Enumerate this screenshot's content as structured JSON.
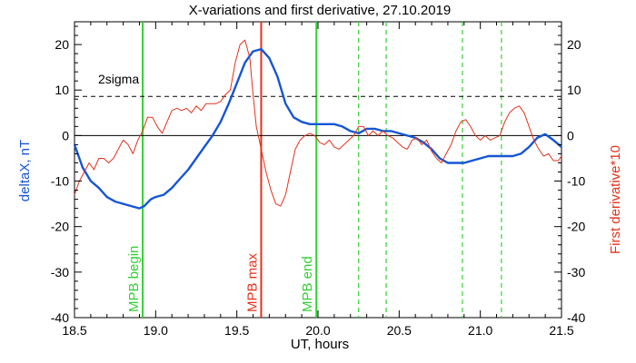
{
  "chart_data": {
    "type": "line",
    "title": "X-variations and first derivative, 27.10.2019",
    "xlabel": "UT, hours",
    "ylabel_left": "deltaX, nT",
    "ylabel_right": "First derivative*10",
    "xlim": [
      18.5,
      21.5
    ],
    "ylim_left": [
      -40,
      25
    ],
    "ylim_right": [
      -40,
      25
    ],
    "x_ticks": [
      "18.5",
      "19.0",
      "19.5",
      "20.0",
      "20.5",
      "21.0",
      "21.5"
    ],
    "x_tick_values": [
      18.5,
      19.0,
      19.5,
      20.0,
      20.5,
      21.0,
      21.5
    ],
    "y_ticks": [
      "20",
      "10",
      "0",
      "-10",
      "-20",
      "-30",
      "-40"
    ],
    "y_tick_values": [
      20,
      10,
      0,
      -10,
      -20,
      -30,
      -40
    ],
    "sigma_label": "2sigma",
    "sigma_value": 8.6,
    "colors": {
      "deltaX": "#1555d6",
      "derivative": "#e2321c",
      "mpb_begin": "#33d233",
      "mpb_max": "#e2321c",
      "mpb_end": "#33d233",
      "dashed_markers": "#33d233"
    },
    "vertical_markers": [
      {
        "x": 18.92,
        "label": "MPB begin",
        "color": "#33d233"
      },
      {
        "x": 19.65,
        "label": "MPB max",
        "color": "#e2321c"
      },
      {
        "x": 19.99,
        "label": "MPB end",
        "color": "#33d233"
      }
    ],
    "dashed_markers": [
      20.25,
      20.42,
      20.89,
      21.13
    ],
    "series": [
      {
        "name": "deltaX, nT",
        "axis": "left",
        "x": [
          18.5,
          18.55,
          18.6,
          18.65,
          18.7,
          18.75,
          18.8,
          18.85,
          18.9,
          18.93,
          18.97,
          19.0,
          19.05,
          19.1,
          19.15,
          19.2,
          19.25,
          19.3,
          19.35,
          19.4,
          19.45,
          19.5,
          19.55,
          19.6,
          19.65,
          19.7,
          19.75,
          19.8,
          19.85,
          19.9,
          19.95,
          20.0,
          20.05,
          20.1,
          20.15,
          20.2,
          20.25,
          20.3,
          20.35,
          20.4,
          20.45,
          20.5,
          20.55,
          20.6,
          20.65,
          20.7,
          20.75,
          20.8,
          20.85,
          20.9,
          20.95,
          21.0,
          21.05,
          21.1,
          21.15,
          21.2,
          21.25,
          21.3,
          21.35,
          21.4,
          21.45,
          21.5
        ],
        "values": [
          -2,
          -7,
          -10,
          -11.5,
          -13.5,
          -14.5,
          -15,
          -15.5,
          -16,
          -15.5,
          -14,
          -13.5,
          -13,
          -11.5,
          -9.5,
          -7.5,
          -5,
          -2.5,
          0,
          3,
          7,
          11.5,
          16,
          18.5,
          19,
          17,
          13,
          7,
          4,
          3,
          2.5,
          2.5,
          2.5,
          2.5,
          2,
          1,
          0.5,
          1.5,
          1.5,
          1,
          1,
          0.5,
          0,
          -0.5,
          -1.5,
          -3,
          -5,
          -6,
          -6,
          -6,
          -5.5,
          -5,
          -4.5,
          -4.5,
          -4.5,
          -4.5,
          -4,
          -2.5,
          -0.5,
          0.3,
          -1,
          -2.5
        ]
      },
      {
        "name": "First derivative*10",
        "axis": "right",
        "x": [
          18.5,
          18.53,
          18.56,
          18.59,
          18.62,
          18.65,
          18.68,
          18.71,
          18.74,
          18.77,
          18.8,
          18.83,
          18.86,
          18.89,
          18.92,
          18.95,
          18.98,
          19.01,
          19.04,
          19.07,
          19.1,
          19.13,
          19.16,
          19.19,
          19.22,
          19.25,
          19.28,
          19.31,
          19.34,
          19.37,
          19.4,
          19.43,
          19.46,
          19.49,
          19.52,
          19.55,
          19.58,
          19.6,
          19.62,
          19.65,
          19.68,
          19.71,
          19.74,
          19.77,
          19.8,
          19.83,
          19.86,
          19.89,
          19.92,
          19.95,
          19.98,
          20.01,
          20.04,
          20.07,
          20.1,
          20.13,
          20.16,
          20.19,
          20.22,
          20.25,
          20.28,
          20.31,
          20.34,
          20.37,
          20.4,
          20.43,
          20.46,
          20.49,
          20.52,
          20.55,
          20.58,
          20.61,
          20.64,
          20.67,
          20.7,
          20.73,
          20.76,
          20.79,
          20.82,
          20.85,
          20.88,
          20.91,
          20.94,
          20.97,
          21.0,
          21.03,
          21.06,
          21.09,
          21.12,
          21.15,
          21.18,
          21.21,
          21.24,
          21.27,
          21.3,
          21.33,
          21.36,
          21.39,
          21.42,
          21.45,
          21.48,
          21.5
        ],
        "values": [
          -13,
          -10,
          -8,
          -6,
          -7.5,
          -5,
          -5,
          -6,
          -5,
          -3,
          -1,
          -2,
          -4,
          -1,
          1,
          4,
          4,
          2,
          0.5,
          3,
          5.5,
          6,
          5.5,
          6,
          5,
          6.5,
          5.5,
          7,
          7,
          7,
          7.5,
          9,
          10,
          16,
          20,
          21,
          17,
          9,
          2,
          -3,
          -8,
          -12,
          -15,
          -15.5,
          -13,
          -8,
          -3,
          -1,
          0,
          0.5,
          0,
          -1.5,
          -2,
          -1,
          -2.5,
          -3,
          -2,
          -1,
          0,
          2,
          2,
          0,
          1,
          0,
          1,
          0,
          -0.5,
          -1.5,
          -2.5,
          -3,
          -1,
          -0.5,
          -2,
          -1,
          -3.5,
          -5,
          -6,
          -4,
          -2,
          1,
          3,
          3.5,
          2,
          0,
          -1,
          0,
          -1,
          -0.5,
          0,
          3,
          5,
          6,
          6.5,
          5,
          2,
          -1,
          -3,
          -4.5,
          -4,
          -5.5,
          -5.5,
          -4.5
        ]
      }
    ]
  }
}
